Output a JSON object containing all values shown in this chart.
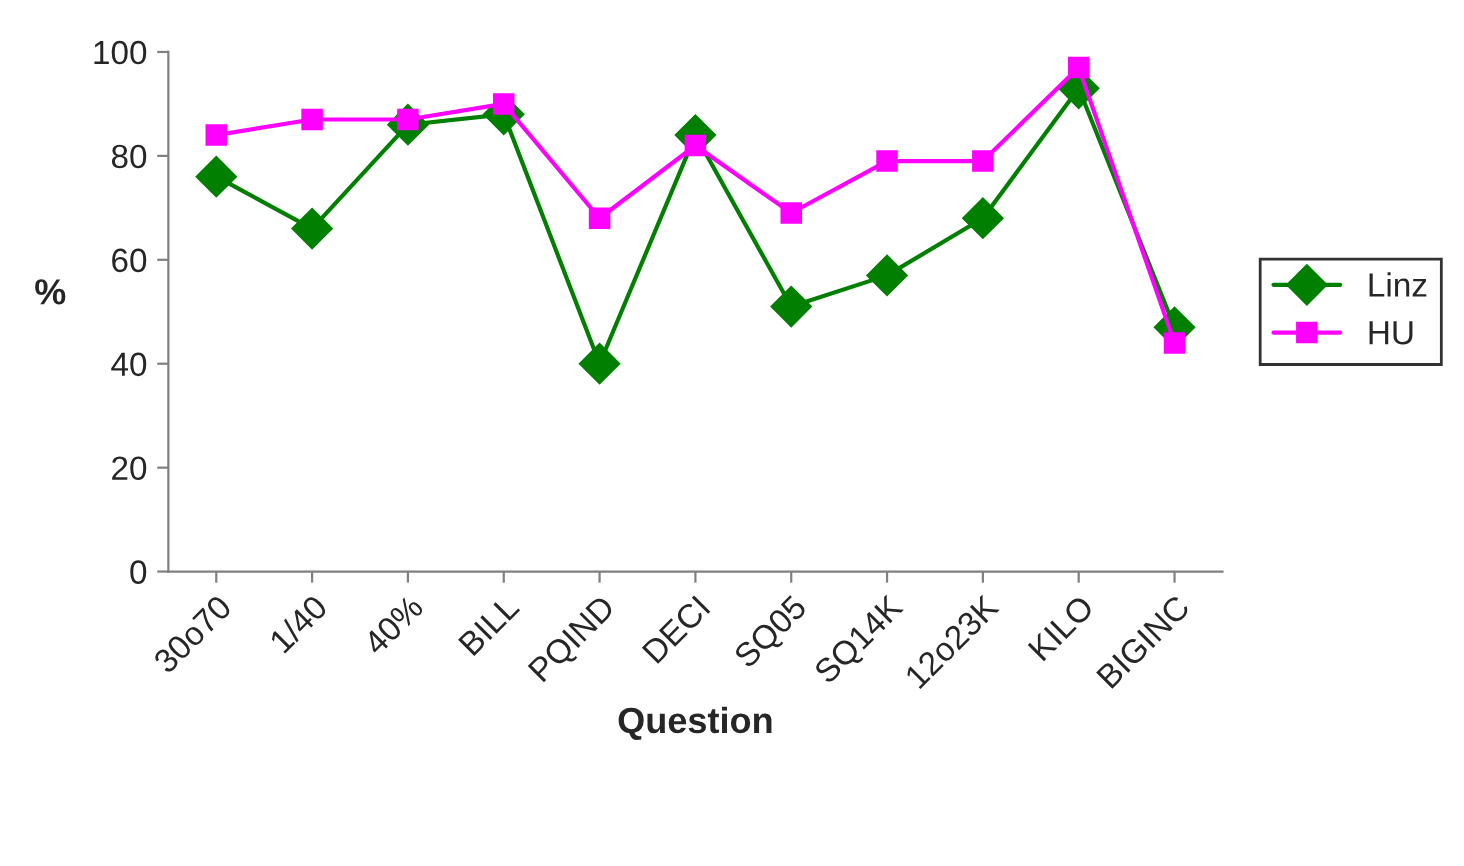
{
  "chart_data": {
    "type": "line",
    "xlabel": "Question",
    "ylabel": "%",
    "categories": [
      "30o70",
      "1/40",
      "40%",
      "BILL",
      "PQIND",
      "DECI",
      "SQ05",
      "SQ14K",
      "12o23K",
      "KILO",
      "BIGINC"
    ],
    "series": [
      {
        "name": "Linz",
        "color": "#007f00",
        "marker": "diamond",
        "values": [
          76,
          66,
          86,
          88,
          40,
          84,
          51,
          57,
          68,
          93,
          47
        ]
      },
      {
        "name": "HU",
        "color": "#ff00ff",
        "marker": "square",
        "values": [
          84,
          87,
          87,
          90,
          68,
          82,
          69,
          79,
          79,
          97,
          44
        ]
      }
    ],
    "ylim": [
      0,
      100
    ],
    "yticks": [
      0,
      20,
      40,
      60,
      80,
      100
    ],
    "grid": false,
    "legend": "right"
  }
}
